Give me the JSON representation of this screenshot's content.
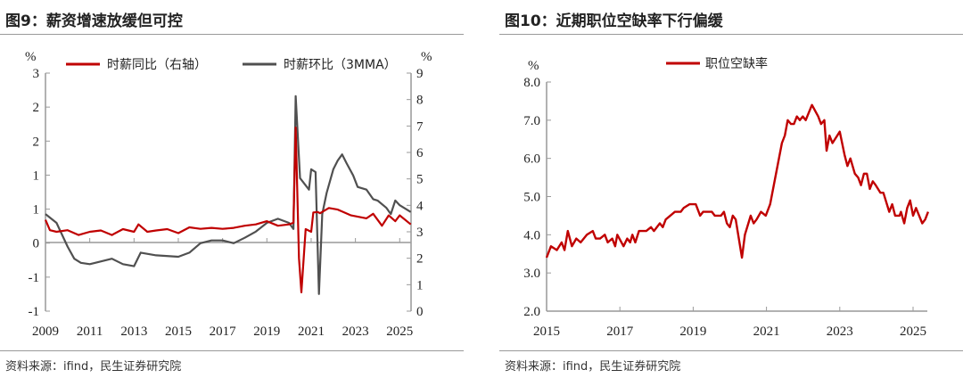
{
  "left": {
    "title": "图9：薪资增速放缓但可控",
    "source": "资料来源：ifind，民生证券研究院"
  },
  "right": {
    "title": "图10：近期职位空缺率下行偏缓",
    "source": "资料来源：ifind，民生证券研究院"
  },
  "chart_data": [
    {
      "type": "line",
      "left_unit": "%",
      "right_unit": "%",
      "x_ticks": [
        "2009",
        "2011",
        "2013",
        "2015",
        "2017",
        "2019",
        "2021",
        "2023",
        "2025"
      ],
      "y_left_ticks": [
        "3",
        "2",
        "2",
        "1",
        "1",
        "0",
        "-1",
        "-1"
      ],
      "y_left_range": [
        -1,
        2.5
      ],
      "y_right_ticks": [
        "9",
        "8",
        "7",
        "6",
        "5",
        "4",
        "3",
        "2",
        "1",
        "0"
      ],
      "y_right_range": [
        0,
        9
      ],
      "legend_placement": "top",
      "series": [
        {
          "name": "时薪同比（右轴）",
          "axis": "right",
          "color": "#c00000",
          "x": [
            2009.0,
            2009.2,
            2009.5,
            2010.0,
            2010.5,
            2011.0,
            2011.5,
            2012.0,
            2012.5,
            2013.0,
            2013.2,
            2013.6,
            2014.0,
            2014.5,
            2015.0,
            2015.5,
            2016.0,
            2016.5,
            2017.0,
            2017.5,
            2018.0,
            2018.5,
            2019.0,
            2019.5,
            2020.0,
            2020.2,
            2020.3,
            2020.45,
            2020.56,
            2020.75,
            2021.0,
            2021.1,
            2021.3,
            2021.4,
            2021.8,
            2022.2,
            2022.8,
            2023.5,
            2023.8,
            2024.2,
            2024.5,
            2024.8,
            2025.0,
            2025.5
          ],
          "y": [
            3.45,
            3.06,
            3.0,
            3.06,
            2.88,
            3.0,
            3.05,
            2.88,
            3.1,
            3.0,
            3.28,
            3.0,
            3.05,
            3.1,
            2.95,
            3.17,
            3.11,
            3.15,
            3.11,
            3.15,
            3.23,
            3.28,
            3.4,
            3.23,
            3.28,
            3.34,
            6.94,
            2.0,
            0.71,
            3.1,
            3.0,
            3.73,
            3.75,
            3.7,
            3.9,
            3.84,
            3.62,
            3.51,
            3.68,
            3.23,
            3.62,
            3.4,
            3.62,
            3.28
          ]
        },
        {
          "name": "时薪环比（3MMA）",
          "axis": "left",
          "color": "#505050",
          "x": [
            2009.0,
            2009.5,
            2010.0,
            2010.3,
            2010.6,
            2011.0,
            2012.0,
            2012.5,
            2013.0,
            2013.3,
            2014.0,
            2015.0,
            2015.5,
            2016.0,
            2016.5,
            2017.0,
            2017.5,
            2018.0,
            2018.5,
            2019.0,
            2019.5,
            2020.0,
            2020.2,
            2020.3,
            2020.5,
            2020.9,
            2021.0,
            2021.2,
            2021.35,
            2021.5,
            2021.7,
            2022.0,
            2022.2,
            2022.4,
            2022.6,
            2022.9,
            2023.1,
            2023.5,
            2023.8,
            2024.0,
            2024.4,
            2024.6,
            2024.8,
            2025.0,
            2025.5
          ],
          "y": [
            0.42,
            0.29,
            -0.06,
            -0.24,
            -0.3,
            -0.32,
            -0.24,
            -0.32,
            -0.35,
            -0.15,
            -0.19,
            -0.21,
            -0.15,
            -0.01,
            0.03,
            0.03,
            -0.01,
            0.07,
            0.16,
            0.29,
            0.35,
            0.29,
            0.2,
            2.16,
            0.95,
            0.78,
            1.08,
            1.04,
            -0.76,
            0.42,
            0.73,
            1.08,
            1.21,
            1.3,
            1.17,
            0.99,
            0.82,
            0.78,
            0.64,
            0.62,
            0.51,
            0.42,
            0.62,
            0.55,
            0.45
          ]
        }
      ]
    },
    {
      "type": "line",
      "unit": "%",
      "x_ticks": [
        "2015",
        "2017",
        "2019",
        "2021",
        "2023",
        "2025"
      ],
      "y_ticks": [
        "8.0",
        "7.0",
        "6.0",
        "5.0",
        "4.0",
        "3.0",
        "2.0"
      ],
      "y_range": [
        2,
        8
      ],
      "legend_placement": "top",
      "series": [
        {
          "name": "职位空缺率",
          "color": "#c00000",
          "x": [
            2015.0,
            2015.12,
            2015.28,
            2015.41,
            2015.49,
            2015.58,
            2015.69,
            2015.81,
            2015.93,
            2016.1,
            2016.26,
            2016.34,
            2016.46,
            2016.59,
            2016.67,
            2016.79,
            2016.87,
            2016.93,
            2017.1,
            2017.2,
            2017.28,
            2017.34,
            2017.42,
            2017.52,
            2017.72,
            2017.85,
            2017.93,
            2018.09,
            2018.17,
            2018.25,
            2018.5,
            2018.66,
            2018.74,
            2018.9,
            2019.07,
            2019.19,
            2019.27,
            2019.51,
            2019.59,
            2019.76,
            2019.84,
            2019.92,
            2020.0,
            2020.08,
            2020.16,
            2020.33,
            2020.41,
            2020.57,
            2020.65,
            2020.73,
            2020.85,
            2020.98,
            2021.1,
            2021.42,
            2021.5,
            2021.58,
            2021.67,
            2021.75,
            2021.83,
            2021.91,
            2021.99,
            2022.07,
            2022.24,
            2022.41,
            2022.45,
            2022.49,
            2022.58,
            2022.64,
            2022.72,
            2022.8,
            2023.0,
            2023.13,
            2023.21,
            2023.29,
            2023.41,
            2023.5,
            2023.58,
            2023.66,
            2023.74,
            2023.82,
            2023.9,
            2023.98,
            2024.11,
            2024.19,
            2024.35,
            2024.43,
            2024.51,
            2024.63,
            2024.67,
            2024.76,
            2024.84,
            2024.92,
            2025.0,
            2025.08,
            2025.25,
            2025.33,
            2025.41
          ],
          "y": [
            3.4,
            3.7,
            3.6,
            3.8,
            3.6,
            4.1,
            3.7,
            3.9,
            3.8,
            4.0,
            4.1,
            3.9,
            3.9,
            4.0,
            3.8,
            3.9,
            3.7,
            4.0,
            3.7,
            3.9,
            3.8,
            4.0,
            3.8,
            4.1,
            4.1,
            4.2,
            4.1,
            4.3,
            4.2,
            4.4,
            4.6,
            4.6,
            4.7,
            4.8,
            4.8,
            4.5,
            4.6,
            4.6,
            4.5,
            4.5,
            4.6,
            4.3,
            4.2,
            4.5,
            4.4,
            3.4,
            4.0,
            4.5,
            4.3,
            4.4,
            4.6,
            4.5,
            4.8,
            6.4,
            6.6,
            7.0,
            6.9,
            6.9,
            7.1,
            7.0,
            7.1,
            7.0,
            7.4,
            7.1,
            7.0,
            6.9,
            7.0,
            6.2,
            6.6,
            6.4,
            6.7,
            6.1,
            5.8,
            6.0,
            5.6,
            5.5,
            5.3,
            5.6,
            5.6,
            5.2,
            5.4,
            5.3,
            5.1,
            5.1,
            4.6,
            4.8,
            4.5,
            4.5,
            4.6,
            4.3,
            4.7,
            4.9,
            4.5,
            4.7,
            4.3,
            4.4,
            4.6
          ]
        }
      ]
    }
  ]
}
